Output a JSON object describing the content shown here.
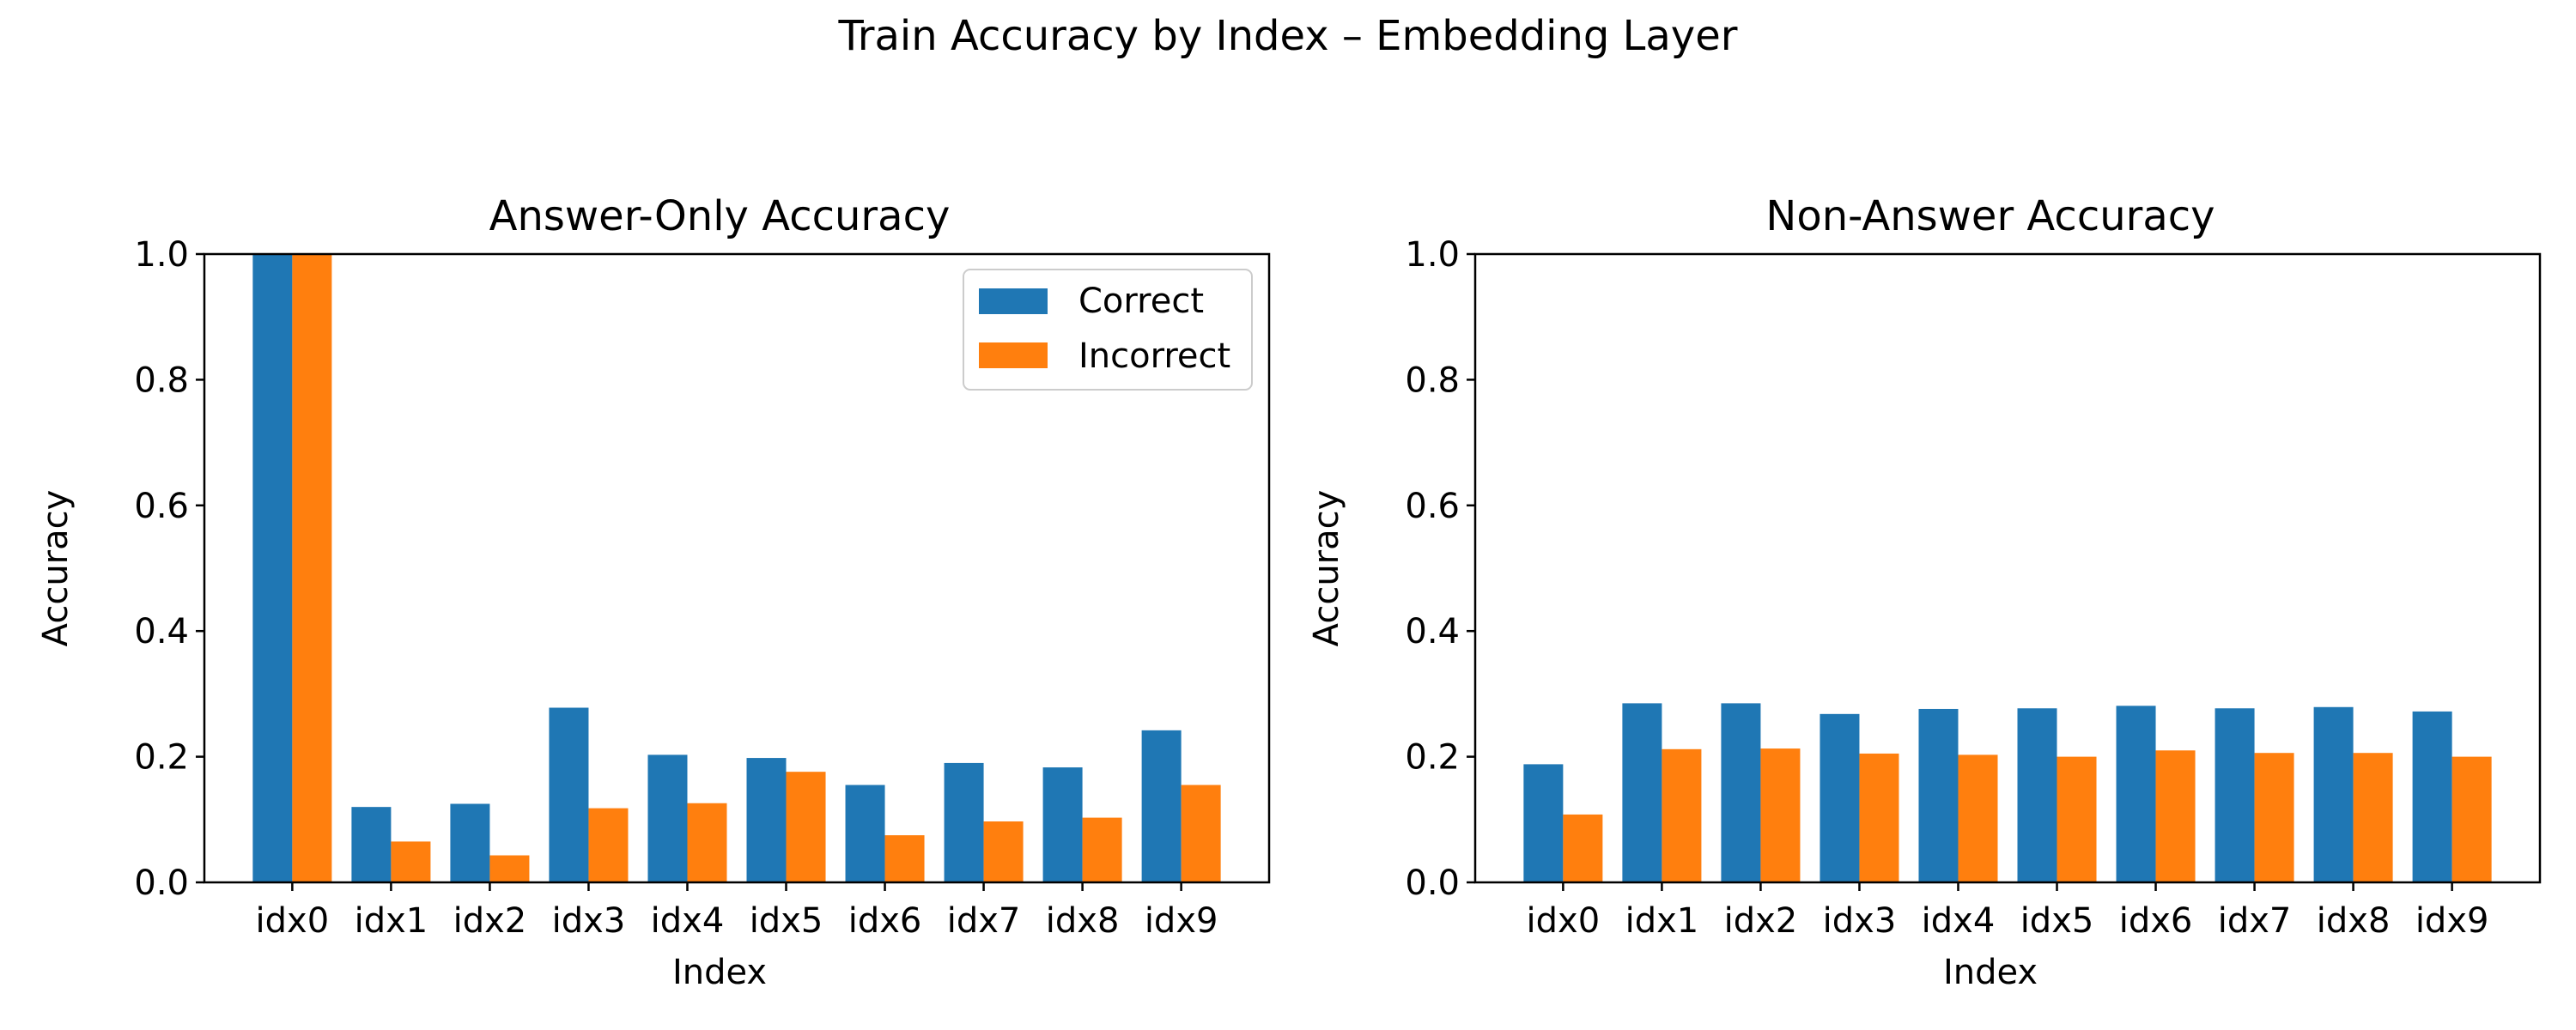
{
  "figure": {
    "title": "Train Accuracy by Index – Embedding Layer"
  },
  "colors": {
    "correct": "#1f77b4",
    "incorrect": "#ff7f0e"
  },
  "chart_data": [
    {
      "type": "bar",
      "title": "Answer-Only Accuracy",
      "xlabel": "Index",
      "ylabel": "Accuracy",
      "categories": [
        "idx0",
        "idx1",
        "idx2",
        "idx3",
        "idx4",
        "idx5",
        "idx6",
        "idx7",
        "idx8",
        "idx9"
      ],
      "ylim": [
        0,
        1
      ],
      "yticks": [
        "0.0",
        "0.2",
        "0.4",
        "0.6",
        "0.8",
        "1.0"
      ],
      "legend": "upper-right",
      "grid": false,
      "series": [
        {
          "name": "Correct",
          "color": "#1f77b4",
          "values": [
            1.0,
            0.12,
            0.125,
            0.278,
            0.203,
            0.198,
            0.155,
            0.19,
            0.183,
            0.242
          ]
        },
        {
          "name": "Incorrect",
          "color": "#ff7f0e",
          "values": [
            1.0,
            0.065,
            0.043,
            0.118,
            0.126,
            0.176,
            0.075,
            0.097,
            0.103,
            0.155
          ]
        }
      ]
    },
    {
      "type": "bar",
      "title": "Non-Answer Accuracy",
      "xlabel": "Index",
      "ylabel": "Accuracy",
      "categories": [
        "idx0",
        "idx1",
        "idx2",
        "idx3",
        "idx4",
        "idx5",
        "idx6",
        "idx7",
        "idx8",
        "idx9"
      ],
      "ylim": [
        0,
        1
      ],
      "yticks": [
        "0.0",
        "0.2",
        "0.4",
        "0.6",
        "0.8",
        "1.0"
      ],
      "grid": false,
      "series": [
        {
          "name": "Correct",
          "color": "#1f77b4",
          "values": [
            0.188,
            0.285,
            0.285,
            0.268,
            0.276,
            0.277,
            0.281,
            0.277,
            0.279,
            0.272
          ]
        },
        {
          "name": "Incorrect",
          "color": "#ff7f0e",
          "values": [
            0.108,
            0.212,
            0.213,
            0.205,
            0.203,
            0.2,
            0.21,
            0.206,
            0.206,
            0.2
          ]
        }
      ]
    }
  ]
}
